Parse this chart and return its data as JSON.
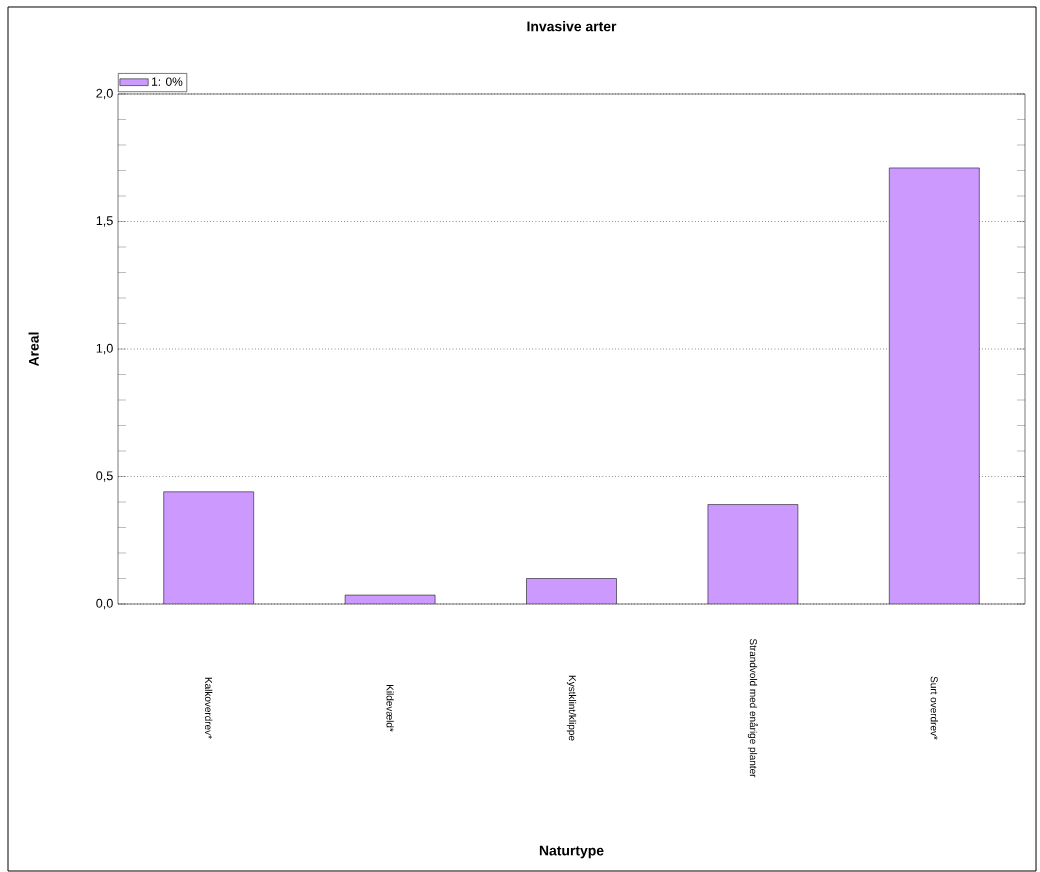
{
  "chart_data": {
    "type": "bar",
    "title": "Invasive arter",
    "xlabel": "Naturtype",
    "ylabel": "Areal",
    "categories": [
      "Kalkoverdrev*",
      "Kildevæld*",
      "Kystklint/klippe",
      "Strandvold med enårige planter",
      "Surt overdrev*"
    ],
    "series": [
      {
        "name": "1: 0%",
        "color": "#cc99ff",
        "values": [
          0.44,
          0.035,
          0.1,
          0.39,
          1.71
        ]
      }
    ],
    "ylim": [
      0,
      2
    ],
    "yticks": [
      {
        "value": 0,
        "label": "0,0"
      },
      {
        "value": 0.5,
        "label": "0,5"
      },
      {
        "value": 1,
        "label": "1,0"
      },
      {
        "value": 1.5,
        "label": "1,5"
      },
      {
        "value": 2,
        "label": "2,0"
      }
    ],
    "grid": "y",
    "legend": "top left"
  }
}
